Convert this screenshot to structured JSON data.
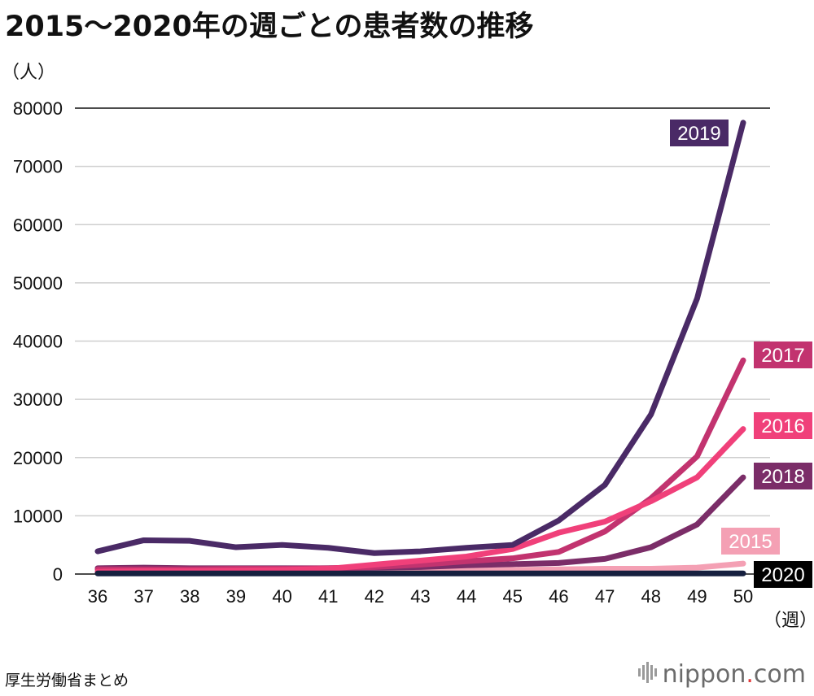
{
  "title": "2015〜2020年の週ごとの患者数の推移",
  "source": "厚生労働省まとめ",
  "brand": {
    "name": "nippon",
    "dot": ".",
    "suffix": "com"
  },
  "chart_data": {
    "type": "line",
    "ylabel": "（人）",
    "xlabel": "（週）",
    "ylim": [
      0,
      80000
    ],
    "yticks": [
      0,
      10000,
      20000,
      30000,
      40000,
      50000,
      60000,
      70000,
      80000
    ],
    "ytick_labels": [
      "0",
      "10000",
      "20000",
      "30000",
      "40000",
      "50000",
      "60000",
      "70000",
      "80000"
    ],
    "x": [
      36,
      37,
      38,
      39,
      40,
      41,
      42,
      43,
      44,
      45,
      46,
      47,
      48,
      49,
      50
    ],
    "x_labels": [
      "36",
      "37",
      "38",
      "39",
      "40",
      "41",
      "42",
      "43",
      "44",
      "45",
      "46",
      "47",
      "48",
      "49",
      "50"
    ],
    "grid": true,
    "series": [
      {
        "name": "2015",
        "color": "#f4a0b4",
        "values": [
          300,
          300,
          300,
          300,
          300,
          400,
          400,
          500,
          600,
          700,
          800,
          900,
          900,
          1100,
          1800
        ]
      },
      {
        "name": "2018",
        "color": "#7b2d68",
        "values": [
          1000,
          1100,
          1000,
          1000,
          1000,
          1000,
          1100,
          1200,
          1500,
          1700,
          1900,
          2600,
          4600,
          8500,
          16600
        ]
      },
      {
        "name": "2017",
        "color": "#c2336f",
        "values": [
          800,
          800,
          800,
          900,
          900,
          1000,
          1200,
          1600,
          2200,
          2700,
          3800,
          7300,
          13000,
          20200,
          36700
        ]
      },
      {
        "name": "2016",
        "color": "#f0407a",
        "values": [
          400,
          500,
          500,
          600,
          700,
          900,
          1600,
          2300,
          3000,
          4300,
          7100,
          9000,
          12500,
          16600,
          24900
        ]
      },
      {
        "name": "2019",
        "color": "#4a2a66",
        "values": [
          3900,
          5800,
          5700,
          4600,
          5000,
          4500,
          3600,
          3900,
          4500,
          5000,
          9200,
          15300,
          27400,
          47300,
          77500
        ]
      },
      {
        "name": "2020",
        "color": "#16203f",
        "values": [
          100,
          100,
          100,
          100,
          100,
          100,
          100,
          100,
          100,
          100,
          100,
          100,
          100,
          100,
          100
        ]
      }
    ],
    "labels": [
      {
        "series": "2019",
        "text": "2019",
        "bg": "#4a2a66",
        "fg": "#ffffff"
      },
      {
        "series": "2017",
        "text": "2017",
        "bg": "#c2336f",
        "fg": "#ffffff"
      },
      {
        "series": "2016",
        "text": "2016",
        "bg": "#f0407a",
        "fg": "#ffffff"
      },
      {
        "series": "2018",
        "text": "2018",
        "bg": "#7b2d68",
        "fg": "#ffffff"
      },
      {
        "series": "2015",
        "text": "2015",
        "bg": "#f4a0b4",
        "fg": "#ffffff"
      },
      {
        "series": "2020",
        "text": "2020",
        "bg": "#000000",
        "fg": "#ffffff"
      }
    ]
  }
}
